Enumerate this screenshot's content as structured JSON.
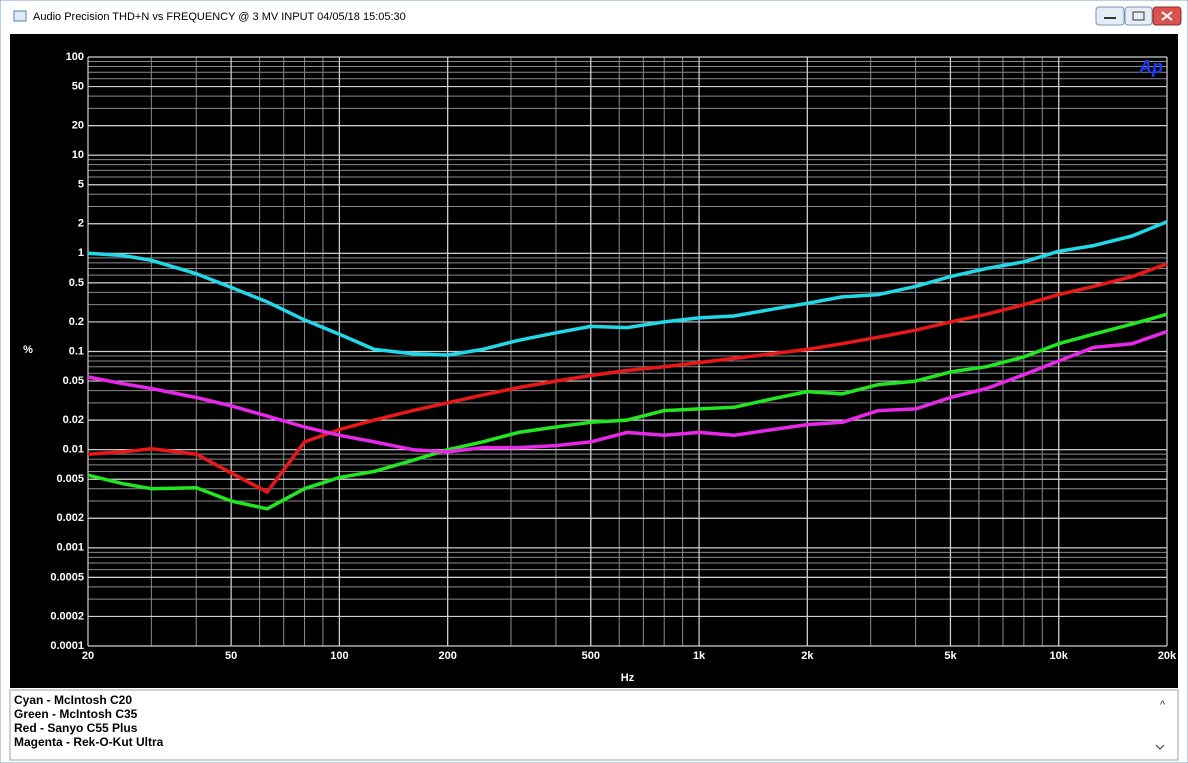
{
  "window_title": "Audio Precision  THD+N vs FREQUENCY @ 3 MV INPUT  04/05/18 15:05:30",
  "chart_data": {
    "type": "line",
    "logo": "Ap",
    "ylabel": "%",
    "xlabel": "Hz",
    "xscale": "log",
    "yscale": "log",
    "grid": true,
    "minor_grid": true,
    "xlim": [
      20,
      20000
    ],
    "ylim": [
      0.0001,
      100
    ],
    "xticks": [
      20,
      50,
      100,
      200,
      500,
      {
        "value": 1000,
        "label": "1k"
      },
      {
        "value": 2000,
        "label": "2k"
      },
      {
        "value": 5000,
        "label": "5k"
      },
      {
        "value": 10000,
        "label": "10k"
      },
      {
        "value": 20000,
        "label": "20k"
      }
    ],
    "yticks": [
      100,
      50,
      20,
      10,
      5,
      2,
      1,
      0.5,
      0.2,
      0.1,
      0.05,
      0.02,
      0.01,
      0.005,
      0.002,
      0.001,
      0.0005,
      0.0002,
      0.0001
    ],
    "x": [
      20,
      25,
      30,
      40,
      50,
      63,
      80,
      100,
      125,
      160,
      200,
      250,
      315,
      400,
      500,
      630,
      800,
      1000,
      1250,
      1600,
      2000,
      2500,
      3150,
      4000,
      5000,
      6300,
      8000,
      10000,
      12500,
      16000,
      20000
    ],
    "series": [
      {
        "name": "Cyan - McIntosh C20",
        "color": "#22d8e8",
        "values": [
          1.0,
          0.95,
          0.85,
          0.62,
          0.45,
          0.32,
          0.21,
          0.15,
          0.105,
          0.095,
          0.092,
          0.105,
          0.13,
          0.155,
          0.18,
          0.175,
          0.2,
          0.22,
          0.23,
          0.27,
          0.31,
          0.36,
          0.38,
          0.46,
          0.58,
          0.7,
          0.82,
          1.05,
          1.2,
          1.5,
          2.1
        ]
      },
      {
        "name": "Green - McIntosh C35",
        "color": "#22e622",
        "values": [
          0.0055,
          0.0045,
          0.004,
          0.0041,
          0.003,
          0.0025,
          0.004,
          0.0052,
          0.006,
          0.0078,
          0.01,
          0.012,
          0.015,
          0.017,
          0.019,
          0.02,
          0.025,
          0.026,
          0.027,
          0.033,
          0.039,
          0.037,
          0.046,
          0.05,
          0.062,
          0.07,
          0.088,
          0.12,
          0.15,
          0.19,
          0.24
        ]
      },
      {
        "name": "Red - Sanyo C55 Plus",
        "color": "#e81818",
        "values": [
          0.009,
          0.0095,
          0.0102,
          0.009,
          0.0058,
          0.0037,
          0.012,
          0.016,
          0.02,
          0.025,
          0.03,
          0.036,
          0.043,
          0.05,
          0.057,
          0.064,
          0.07,
          0.077,
          0.085,
          0.095,
          0.105,
          0.12,
          0.14,
          0.165,
          0.2,
          0.24,
          0.3,
          0.38,
          0.46,
          0.58,
          0.78
        ]
      },
      {
        "name": "Magenta - Rek-O-Kut Ultra",
        "color": "#e828e8",
        "values": [
          0.055,
          0.047,
          0.042,
          0.034,
          0.028,
          0.022,
          0.017,
          0.014,
          0.012,
          0.01,
          0.0095,
          0.0105,
          0.0105,
          0.011,
          0.012,
          0.015,
          0.014,
          0.015,
          0.014,
          0.016,
          0.018,
          0.019,
          0.025,
          0.026,
          0.034,
          0.042,
          0.058,
          0.08,
          0.11,
          0.12,
          0.16
        ]
      }
    ]
  }
}
